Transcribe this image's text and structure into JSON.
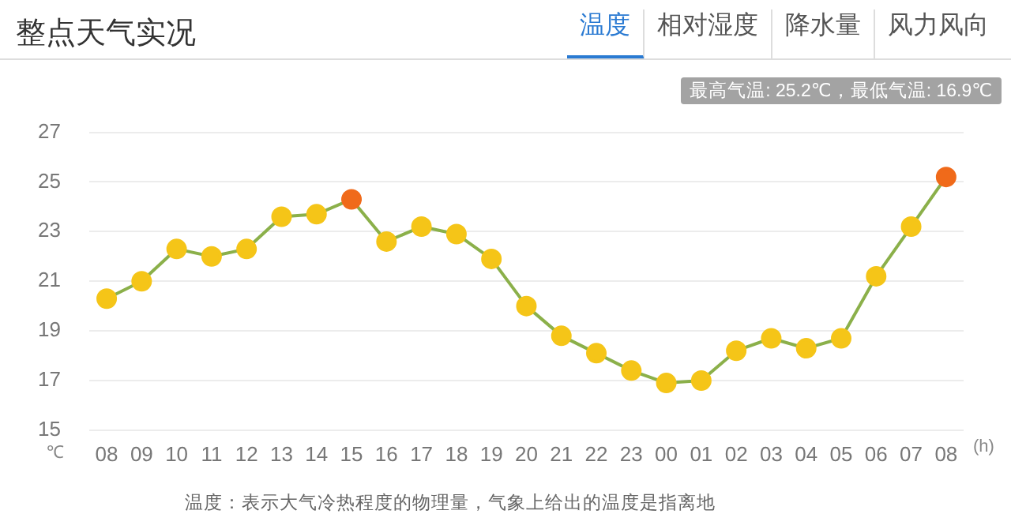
{
  "chart_data": {
    "type": "line",
    "title": "整点天气实况",
    "subtitle": "最高气温: 25.2℃，最低气温: 16.9℃",
    "xlabel": "(h)",
    "ylabel": "℃",
    "categories": [
      "08",
      "09",
      "10",
      "11",
      "12",
      "13",
      "14",
      "15",
      "16",
      "17",
      "18",
      "19",
      "20",
      "21",
      "22",
      "23",
      "00",
      "01",
      "02",
      "03",
      "04",
      "05",
      "06",
      "07",
      "08"
    ],
    "series": [
      {
        "color": "#8bb04a",
        "values": [
          20.3,
          21.0,
          22.3,
          22.0,
          22.3,
          23.6,
          23.7,
          24.3,
          22.6,
          23.2,
          22.9,
          21.9,
          20.0,
          18.8,
          18.1,
          17.4,
          16.9,
          17.0,
          18.2,
          18.7,
          18.3,
          18.7,
          21.2,
          23.2,
          25.2
        ],
        "colors": [
          "#f5c518",
          "#f5c518",
          "#f5c518",
          "#f5c518",
          "#f5c518",
          "#f5c518",
          "#f5c518",
          "#f06a1a",
          "#f5c518",
          "#f5c518",
          "#f5c518",
          "#f5c518",
          "#f5c518",
          "#f5c518",
          "#f5c518",
          "#f5c518",
          "#f5c518",
          "#f5c518",
          "#f5c518",
          "#f5c518",
          "#f5c518",
          "#f5c518",
          "#f5c518",
          "#f5c518",
          "#f06a1a"
        ]
      }
    ],
    "ylim": [
      15,
      27
    ],
    "yticks": [
      15,
      17,
      19,
      21,
      23,
      25,
      27
    ],
    "grid": "y",
    "legend": false,
    "marker": "circle",
    "line_style": "solid",
    "annotations": [
      "温度",
      "相对湿度",
      "降水量",
      "风力风向",
      "温度：表示大气冷热程度的物理量，气象上给出的温度是指离地"
    ]
  }
}
